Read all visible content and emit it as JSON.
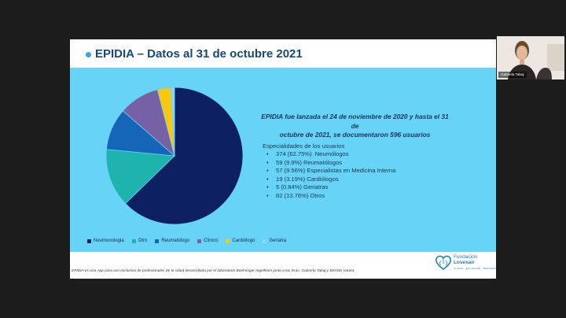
{
  "slide": {
    "title": "EPIDIA – Datos al 31 de octubre 2021",
    "intro_line1": "EPIDIA fue lanzada el 24 de noviembre de 2020 y hasta el 31 de",
    "intro_line2": "octubre de 2021, se documentaron 596 usuarios",
    "list_heading": "Especialidades de los usuarios",
    "stats": [
      "374 (62.75%)  Neumólogos",
      "59 (9.9%) Reumatólogos",
      "57 (9.56%) Especialistas en Medicina Interna",
      "19 (3.19%) Cardiólogos",
      "5 (0.84%) Geriatras",
      "82 (13.76%) Otros"
    ],
    "footnote": "EPIDIA es una App para uso exclusivo de profesionales de la salud desarrollada por el laboratorio Boehringer Ingelheim junto a las Dras. Gabriela Tabaj y Brenda Varela.",
    "logo": {
      "line1": "Fundación",
      "line2": "Lovexair",
      "tagline": "CUIDAR · ESCUCHAR · MEJORAR",
      "icon": "heart-lungs-logo-icon"
    }
  },
  "chart_data": {
    "type": "pie",
    "categories": [
      "Neumonologia",
      "Otro",
      "Reumatólogo",
      "Clínico",
      "Cardiólogo",
      "Geriatra"
    ],
    "values": [
      374,
      82,
      59,
      57,
      19,
      5
    ],
    "colors": [
      "#0d2162",
      "#1fb3ad",
      "#1565b8",
      "#7561a3",
      "#f9c80e",
      "#8fd6f5"
    ],
    "legend_position": "bottom-left"
  },
  "colors": {
    "panel_background": "#67d3f7",
    "title_color": "#16477a",
    "accent": "#35a8dc"
  },
  "webcam": {
    "name": "Gabriela Tabaj"
  }
}
